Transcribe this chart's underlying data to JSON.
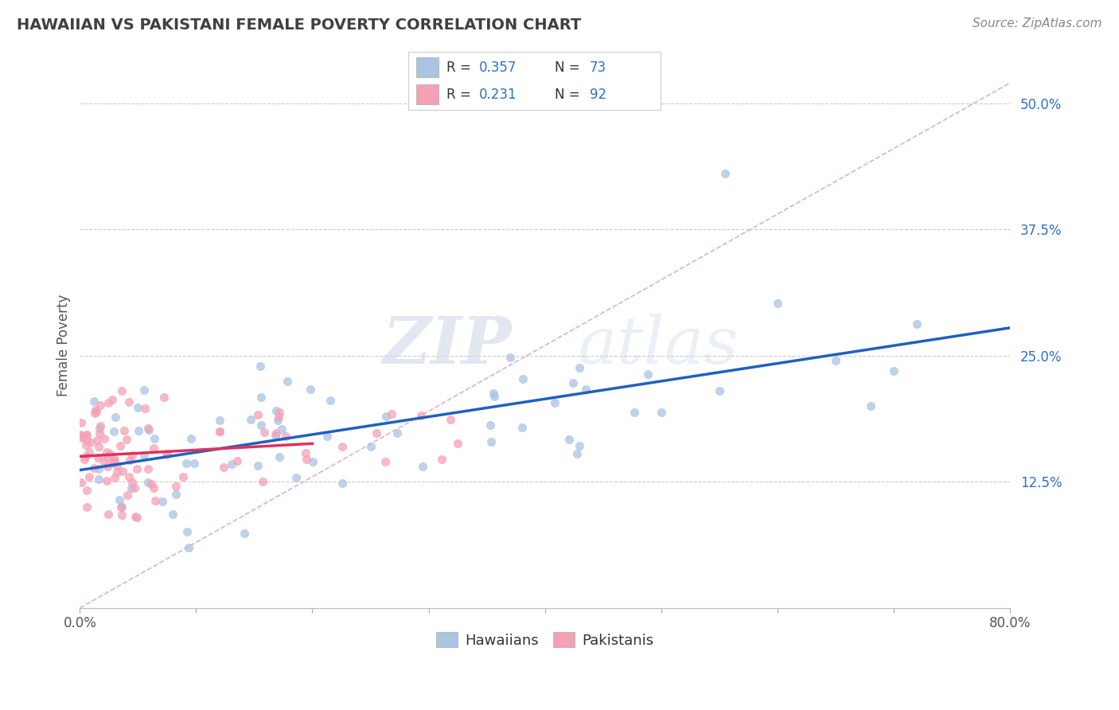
{
  "title": "HAWAIIAN VS PAKISTANI FEMALE POVERTY CORRELATION CHART",
  "source": "Source: ZipAtlas.com",
  "ylabel": "Female Poverty",
  "xlim": [
    0.0,
    0.8
  ],
  "ylim": [
    0.0,
    0.52
  ],
  "yticks": [
    0.0,
    0.125,
    0.25,
    0.375,
    0.5
  ],
  "ytick_labels": [
    "",
    "12.5%",
    "25.0%",
    "37.5%",
    "50.0%"
  ],
  "xtick_left_label": "0.0%",
  "xtick_right_label": "80.0%",
  "legend_r1": "R = 0.357",
  "legend_n1": "N = 73",
  "legend_r2": "R = 0.231",
  "legend_n2": "N = 92",
  "hawaiian_color": "#aac4e4",
  "pakistani_color": "#f5a0b5",
  "hawaiian_line_color": "#2060c0",
  "pakistani_line_color": "#e03060",
  "diagonal_color": "#d8a0b0",
  "background_color": "#ffffff",
  "title_color": "#404040",
  "source_color": "#888888",
  "ytick_color": "#3070c0",
  "xtick_color": "#555555",
  "ylabel_color": "#555555",
  "grid_color": "#cccccc",
  "legend_text_color": "#333333",
  "legend_value_color": "#3070c0"
}
